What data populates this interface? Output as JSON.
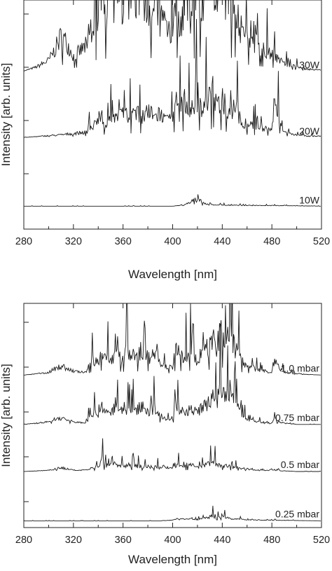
{
  "chart_data": [
    {
      "type": "line",
      "title": "",
      "xlabel": "Wavelength [nm]",
      "ylabel": "Intensity [arb. units]",
      "xlim": [
        280,
        520
      ],
      "xticks": [
        280,
        320,
        360,
        400,
        440,
        480,
        520
      ],
      "yticks_labeled": false,
      "grid": false,
      "series": [
        {
          "name": "30W",
          "baseline": 0.69,
          "x": [
            280,
            290,
            300,
            305,
            310,
            315,
            320,
            325,
            330,
            335,
            340,
            342,
            345,
            350,
            355,
            360,
            365,
            370,
            375,
            380,
            385,
            390,
            395,
            400,
            403,
            405,
            410,
            415,
            420,
            425,
            430,
            432,
            435,
            440,
            445,
            450,
            455,
            460,
            470,
            480,
            490,
            500,
            510,
            520
          ],
          "y": [
            0.69,
            0.72,
            0.77,
            0.85,
            0.95,
            0.9,
            0.8,
            0.84,
            0.88,
            1.05,
            1.2,
            1.42,
            1.2,
            1.25,
            1.22,
            1.28,
            1.3,
            1.25,
            1.3,
            1.22,
            1.25,
            1.1,
            1.05,
            1.0,
            1.35,
            1.0,
            1.25,
            1.1,
            1.35,
            1.2,
            1.4,
            1.55,
            1.25,
            1.45,
            1.2,
            1.3,
            1.0,
            0.95,
            0.88,
            0.82,
            0.75,
            0.72,
            0.7,
            0.7
          ]
        },
        {
          "name": "20W",
          "baseline": 0.4,
          "x": [
            280,
            295,
            310,
            320,
            330,
            335,
            340,
            343,
            345,
            350,
            355,
            360,
            365,
            370,
            375,
            380,
            385,
            390,
            395,
            400,
            404,
            405,
            410,
            415,
            420,
            425,
            430,
            433,
            435,
            440,
            445,
            450,
            455,
            460,
            470,
            480,
            482,
            490,
            500,
            510,
            520
          ],
          "y": [
            0.4,
            0.41,
            0.42,
            0.43,
            0.44,
            0.48,
            0.52,
            0.55,
            0.5,
            0.56,
            0.54,
            0.58,
            0.55,
            0.58,
            0.56,
            0.6,
            0.55,
            0.58,
            0.52,
            0.55,
            0.75,
            0.58,
            0.68,
            0.6,
            0.72,
            0.62,
            0.7,
            0.82,
            0.62,
            0.72,
            0.58,
            0.64,
            0.52,
            0.5,
            0.48,
            0.45,
            0.7,
            0.44,
            0.42,
            0.41,
            0.41
          ]
        },
        {
          "name": "10W",
          "baseline": 0.1,
          "x": [
            280,
            400,
            410,
            415,
            417,
            419,
            421,
            425,
            430,
            440,
            460,
            480,
            520
          ],
          "y": [
            0.1,
            0.1,
            0.11,
            0.14,
            0.17,
            0.13,
            0.16,
            0.12,
            0.11,
            0.11,
            0.105,
            0.105,
            0.1
          ]
        }
      ]
    },
    {
      "type": "line",
      "title": "",
      "xlabel": "Wavelength [nm]",
      "ylabel": "Intensity [arb. units]",
      "xlim": [
        280,
        520
      ],
      "xticks": [
        280,
        320,
        360,
        400,
        440,
        480,
        520
      ],
      "yticks_labeled": false,
      "grid": false,
      "series": [
        {
          "name": "1.0 mbar",
          "baseline": 0.68,
          "x": [
            280,
            300,
            305,
            310,
            320,
            330,
            335,
            340,
            343,
            345,
            350,
            355,
            360,
            363,
            365,
            370,
            375,
            380,
            385,
            387,
            390,
            395,
            400,
            403,
            405,
            410,
            415,
            420,
            425,
            430,
            433,
            435,
            438,
            440,
            442,
            445,
            447,
            450,
            455,
            460,
            470,
            480,
            482,
            490,
            500,
            520
          ],
          "y": [
            0.68,
            0.7,
            0.73,
            0.75,
            0.71,
            0.7,
            0.8,
            0.78,
            0.88,
            0.82,
            0.8,
            0.84,
            0.8,
            0.88,
            0.82,
            0.84,
            0.8,
            0.84,
            0.78,
            0.88,
            0.76,
            0.74,
            0.75,
            0.9,
            0.85,
            0.82,
            0.86,
            0.8,
            0.87,
            0.9,
            0.95,
            0.88,
            1.0,
            1.0,
            0.95,
            0.98,
            1.0,
            0.9,
            0.8,
            0.75,
            0.72,
            0.7,
            0.78,
            0.7,
            0.69,
            0.68
          ]
        },
        {
          "name": "0.75 mbar",
          "baseline": 0.46,
          "x": [
            280,
            300,
            305,
            310,
            320,
            330,
            335,
            340,
            343,
            345,
            350,
            355,
            360,
            365,
            370,
            375,
            380,
            385,
            390,
            395,
            400,
            403,
            405,
            410,
            415,
            420,
            425,
            430,
            433,
            435,
            438,
            440,
            442,
            445,
            447,
            450,
            455,
            460,
            470,
            480,
            482,
            490,
            500,
            520
          ],
          "y": [
            0.46,
            0.48,
            0.5,
            0.51,
            0.48,
            0.47,
            0.55,
            0.54,
            0.62,
            0.57,
            0.56,
            0.59,
            0.56,
            0.6,
            0.57,
            0.6,
            0.56,
            0.58,
            0.53,
            0.5,
            0.51,
            0.62,
            0.58,
            0.56,
            0.58,
            0.55,
            0.6,
            0.63,
            0.68,
            0.6,
            0.72,
            0.72,
            0.66,
            0.7,
            0.72,
            0.62,
            0.55,
            0.5,
            0.48,
            0.47,
            0.5,
            0.47,
            0.46,
            0.46
          ]
        },
        {
          "name": "0.5 mbar",
          "baseline": 0.25,
          "x": [
            280,
            300,
            310,
            320,
            330,
            340,
            343,
            345,
            350,
            355,
            360,
            365,
            370,
            380,
            390,
            400,
            405,
            410,
            415,
            420,
            425,
            430,
            433,
            435,
            440,
            445,
            450,
            460,
            470,
            480,
            490,
            500,
            520
          ],
          "y": [
            0.25,
            0.26,
            0.28,
            0.26,
            0.26,
            0.29,
            0.34,
            0.3,
            0.3,
            0.31,
            0.29,
            0.3,
            0.29,
            0.29,
            0.28,
            0.28,
            0.31,
            0.29,
            0.3,
            0.28,
            0.3,
            0.31,
            0.33,
            0.3,
            0.3,
            0.29,
            0.28,
            0.27,
            0.26,
            0.26,
            0.255,
            0.25,
            0.25
          ]
        },
        {
          "name": "0.25 mbar",
          "baseline": 0.03,
          "x": [
            280,
            390,
            400,
            405,
            410,
            415,
            420,
            425,
            430,
            433,
            435,
            440,
            445,
            450,
            460,
            470,
            480,
            520
          ],
          "y": [
            0.03,
            0.03,
            0.035,
            0.05,
            0.04,
            0.045,
            0.04,
            0.05,
            0.06,
            0.07,
            0.05,
            0.06,
            0.05,
            0.045,
            0.04,
            0.035,
            0.035,
            0.03
          ]
        }
      ]
    }
  ]
}
